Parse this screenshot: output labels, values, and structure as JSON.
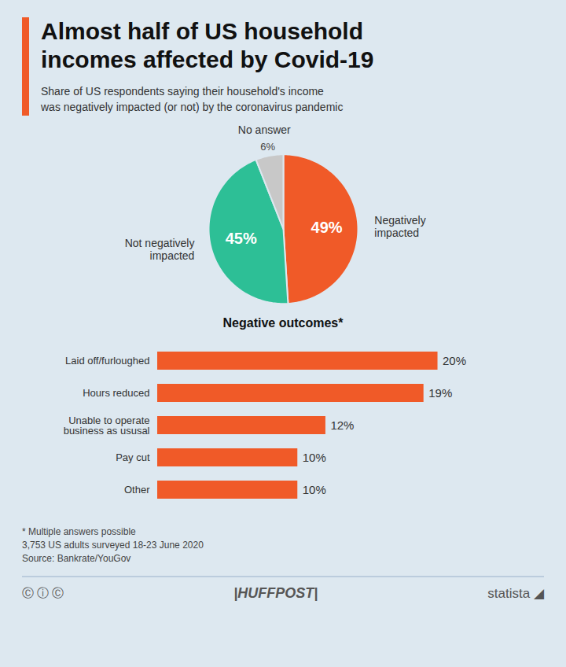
{
  "title": "Almost half of US household\nincomes affected by Covid-19",
  "subtitle": "Share of US respondents saying their household's income\nwas negatively impacted (or not) by the coronavirus pandemic",
  "chart_data": [
    {
      "type": "pie",
      "categories": [
        "Negatively\nimpacted",
        "Not negatively\nimpacted",
        "No answer"
      ],
      "values": [
        49,
        45,
        6
      ],
      "value_labels": [
        "49%",
        "45%",
        "6%"
      ],
      "colors": [
        "#f05a28",
        "#2dbf96",
        "#c8c8c8"
      ],
      "data_labels": true
    },
    {
      "type": "bar",
      "title": "Negative outcomes*",
      "orientation": "horizontal",
      "categories": [
        "Laid off/furloughed",
        "Hours reduced",
        "Unable to operate\nbusiness as ususal",
        "Pay cut",
        "Other"
      ],
      "values": [
        20,
        19,
        12,
        10,
        10
      ],
      "value_labels": [
        "20%",
        "19%",
        "12%",
        "10%",
        "10%"
      ],
      "color": "#f05a28",
      "xlim": [
        0,
        23
      ],
      "grid": false,
      "tick_labels": "y",
      "data_labels": true
    }
  ],
  "notes": [
    "* Multiple answers possible",
    "3,753 US adults surveyed 18-23 June 2020",
    "Source: Bankrate/YouGov"
  ],
  "footer": [
    "Ⓒ ⓘ Ⓒ",
    "|HUFFPOST|",
    "statista",
    "◢"
  ]
}
